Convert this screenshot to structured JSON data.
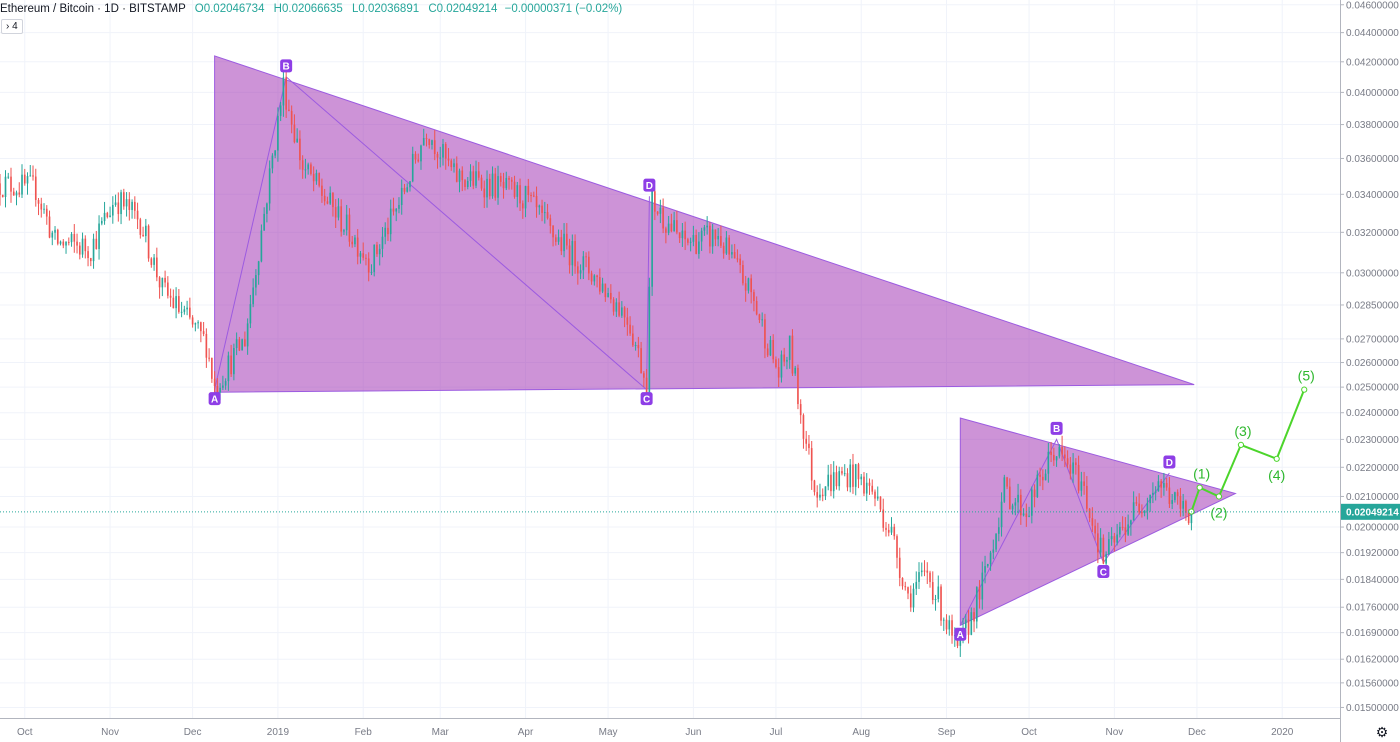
{
  "header": {
    "symbol": "Ethereum / Bitcoin · 1D · BITSTAMP",
    "open_label": "O",
    "open": "0.02046734",
    "high_label": "H",
    "high": "0.02066635",
    "low_label": "L",
    "low": "0.02036891",
    "close_label": "C",
    "close": "0.02049214",
    "change": "−0.00000371 (−0.02%)"
  },
  "collapse_button": {
    "label": "› 4"
  },
  "settings_icon": "gear-icon",
  "colors": {
    "up": "#26a69a",
    "down": "#ef5350",
    "pattern_fill": "#9c27b0",
    "pattern_stroke": "#9c5be0",
    "projection": "#4cd52b",
    "price_line": "#26a69a"
  },
  "chart_data": {
    "type": "candlestick",
    "title": "Ethereum / Bitcoin · 1D · BITSTAMP",
    "xlabel": "",
    "ylabel": "",
    "x_range": [
      "2018-09-22",
      "2020-01-22"
    ],
    "ylim": [
      0.01475,
      0.04635
    ],
    "y_scale": "log",
    "grid": true,
    "price_axis_ticks": [
      "0.04600000",
      "0.04400000",
      "0.04200000",
      "0.04000000",
      "0.03800000",
      "0.03600000",
      "0.03400000",
      "0.03200000",
      "0.03000000",
      "0.02850000",
      "0.02700000",
      "0.02600000",
      "0.02500000",
      "0.02400000",
      "0.02300000",
      "0.02200000",
      "0.02100000",
      "0.02000000",
      "0.01920000",
      "0.01840000",
      "0.01760000",
      "0.01690000",
      "0.01620000",
      "0.01560000",
      "0.01500000"
    ],
    "time_axis_ticks": [
      {
        "date": "2018-10-01",
        "label": "Oct"
      },
      {
        "date": "2018-11-01",
        "label": "Nov"
      },
      {
        "date": "2018-12-01",
        "label": "Dec"
      },
      {
        "date": "2019-01-01",
        "label": "2019"
      },
      {
        "date": "2019-02-01",
        "label": "Feb"
      },
      {
        "date": "2019-03-01",
        "label": "Mar"
      },
      {
        "date": "2019-04-01",
        "label": "Apr"
      },
      {
        "date": "2019-05-01",
        "label": "May"
      },
      {
        "date": "2019-06-01",
        "label": "Jun"
      },
      {
        "date": "2019-07-01",
        "label": "Jul"
      },
      {
        "date": "2019-08-01",
        "label": "Aug"
      },
      {
        "date": "2019-09-01",
        "label": "Sep"
      },
      {
        "date": "2019-10-01",
        "label": "Oct"
      },
      {
        "date": "2019-11-01",
        "label": "Nov"
      },
      {
        "date": "2019-12-01",
        "label": "Dec"
      },
      {
        "date": "2020-01-01",
        "label": "2020"
      }
    ],
    "last_price": "0.02049214",
    "price_path": [
      {
        "date": "2018-09-22",
        "price": 0.0346
      },
      {
        "date": "2018-10-05",
        "price": 0.0343
      },
      {
        "date": "2018-10-12",
        "price": 0.0315
      },
      {
        "date": "2018-10-25",
        "price": 0.0312
      },
      {
        "date": "2018-11-03",
        "price": 0.0338
      },
      {
        "date": "2018-11-12",
        "price": 0.0326
      },
      {
        "date": "2018-11-20",
        "price": 0.0292
      },
      {
        "date": "2018-11-28",
        "price": 0.028
      },
      {
        "date": "2018-12-06",
        "price": 0.0268
      },
      {
        "date": "2018-12-09",
        "price": 0.025
      },
      {
        "date": "2018-12-20",
        "price": 0.027
      },
      {
        "date": "2018-12-27",
        "price": 0.033
      },
      {
        "date": "2019-01-03",
        "price": 0.0405
      },
      {
        "date": "2019-01-10",
        "price": 0.0355
      },
      {
        "date": "2019-01-22",
        "price": 0.033
      },
      {
        "date": "2019-02-04",
        "price": 0.0305
      },
      {
        "date": "2019-02-15",
        "price": 0.0338
      },
      {
        "date": "2019-02-24",
        "price": 0.0378
      },
      {
        "date": "2019-03-06",
        "price": 0.035
      },
      {
        "date": "2019-03-20",
        "price": 0.0345
      },
      {
        "date": "2019-04-01",
        "price": 0.0338
      },
      {
        "date": "2019-04-10",
        "price": 0.032
      },
      {
        "date": "2019-04-25",
        "price": 0.03
      },
      {
        "date": "2019-05-08",
        "price": 0.028
      },
      {
        "date": "2019-05-15",
        "price": 0.0252
      },
      {
        "date": "2019-05-17",
        "price": 0.0336
      },
      {
        "date": "2019-05-28",
        "price": 0.0315
      },
      {
        "date": "2019-06-10",
        "price": 0.0318
      },
      {
        "date": "2019-06-22",
        "price": 0.029
      },
      {
        "date": "2019-07-02",
        "price": 0.0255
      },
      {
        "date": "2019-07-06",
        "price": 0.0266
      },
      {
        "date": "2019-07-10",
        "price": 0.024
      },
      {
        "date": "2019-07-15",
        "price": 0.0213
      },
      {
        "date": "2019-07-28",
        "price": 0.0218
      },
      {
        "date": "2019-08-05",
        "price": 0.0212
      },
      {
        "date": "2019-08-12",
        "price": 0.0198
      },
      {
        "date": "2019-08-18",
        "price": 0.0179
      },
      {
        "date": "2019-08-25",
        "price": 0.0186
      },
      {
        "date": "2019-08-30",
        "price": 0.0176
      },
      {
        "date": "2019-09-05",
        "price": 0.0163
      },
      {
        "date": "2019-09-15",
        "price": 0.0185
      },
      {
        "date": "2019-09-22",
        "price": 0.0212
      },
      {
        "date": "2019-09-30",
        "price": 0.0205
      },
      {
        "date": "2019-10-10",
        "price": 0.0226
      },
      {
        "date": "2019-10-20",
        "price": 0.0215
      },
      {
        "date": "2019-10-28",
        "price": 0.019
      },
      {
        "date": "2019-11-08",
        "price": 0.0205
      },
      {
        "date": "2019-11-17",
        "price": 0.0215
      },
      {
        "date": "2019-11-25",
        "price": 0.0206
      },
      {
        "date": "2019-11-29",
        "price": 0.0205
      }
    ],
    "patterns": [
      {
        "name": "pattern-1",
        "points": [
          {
            "label": "A",
            "date": "2018-12-09",
            "price": 0.0249
          },
          {
            "label": "B",
            "date": "2019-01-04",
            "price": 0.041
          },
          {
            "label": "C",
            "date": "2019-05-15",
            "price": 0.0249
          },
          {
            "label": "D",
            "date": "2019-05-16",
            "price": 0.0339
          }
        ],
        "triangle": [
          {
            "date": "2018-12-09",
            "price": 0.0424
          },
          {
            "date": "2018-12-09",
            "price": 0.0248
          },
          {
            "date": "2019-11-30",
            "price": 0.0251
          }
        ]
      },
      {
        "name": "pattern-2",
        "points": [
          {
            "label": "A",
            "date": "2019-09-06",
            "price": 0.0171
          },
          {
            "label": "B",
            "date": "2019-10-11",
            "price": 0.023
          },
          {
            "label": "C",
            "date": "2019-10-28",
            "price": 0.0189
          },
          {
            "label": "D",
            "date": "2019-11-21",
            "price": 0.0218
          }
        ],
        "triangle": [
          {
            "date": "2019-09-06",
            "price": 0.0238
          },
          {
            "date": "2019-09-06",
            "price": 0.0171
          },
          {
            "date": "2019-12-15",
            "price": 0.0211
          }
        ]
      }
    ],
    "projection": [
      {
        "label": "",
        "date": "2019-11-29",
        "price": 0.0205
      },
      {
        "label": "(1)",
        "date": "2019-12-02",
        "price": 0.0213
      },
      {
        "label": "(2)",
        "date": "2019-12-09",
        "price": 0.021
      },
      {
        "label": "(3)",
        "date": "2019-12-17",
        "price": 0.0228
      },
      {
        "label": "(4)",
        "date": "2019-12-30",
        "price": 0.0223
      },
      {
        "label": "(5)",
        "date": "2020-01-09",
        "price": 0.0249
      }
    ]
  }
}
